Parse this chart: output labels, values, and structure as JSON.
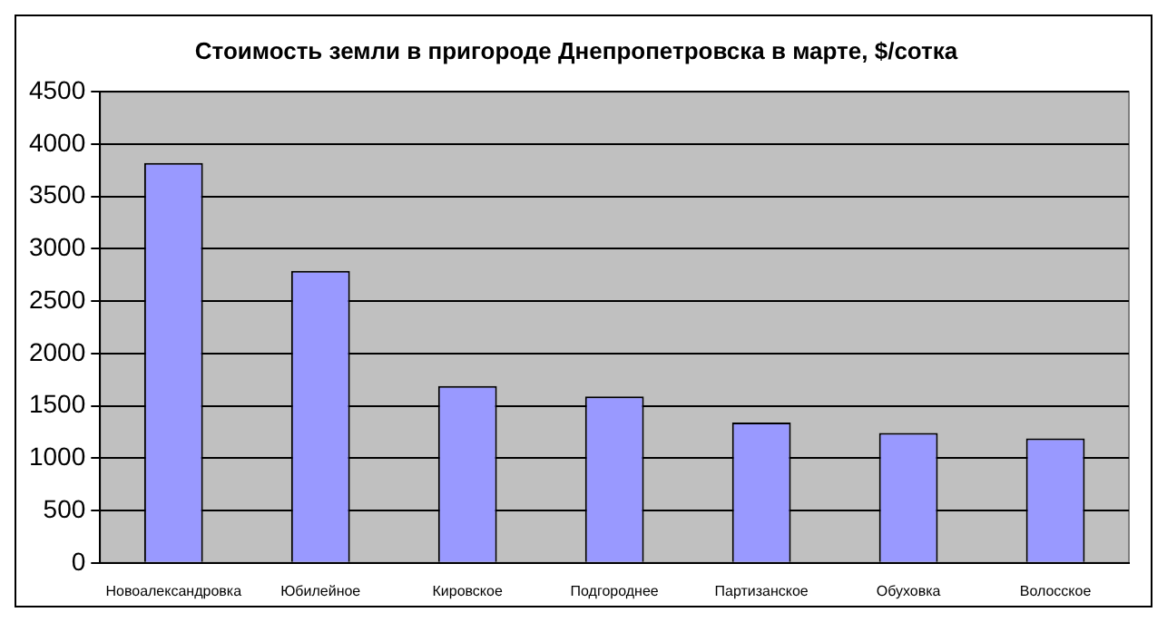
{
  "chart_data": {
    "type": "bar",
    "title": "Стоимость земли в пригороде Днепропетровска в марте, $/сотка",
    "categories": [
      "Новоалександровка",
      "Юбилейное",
      "Кировское",
      "Подгороднее",
      "Партизанское",
      "Обуховка",
      "Волосское"
    ],
    "values": [
      3820,
      2790,
      1690,
      1590,
      1340,
      1240,
      1190
    ],
    "color": "#9999ff",
    "ylim": [
      0,
      4500
    ],
    "yticks": [
      0,
      500,
      1000,
      1500,
      2000,
      2500,
      3000,
      3500,
      4000,
      4500
    ],
    "grid": "y",
    "legend": false
  }
}
